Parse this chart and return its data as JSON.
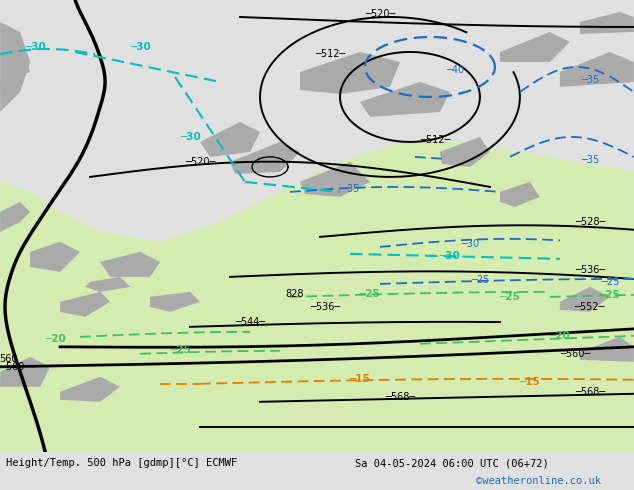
{
  "title_left": "Height/Temp. 500 hPa [gdmp][°C] ECMWF",
  "title_right": "Sa 04-05-2024 06:00 UTC (06+72)",
  "credit": "©weatheronline.co.uk",
  "bg_gray": "#c8c8c8",
  "green_light": "#d4ecb0",
  "green_mid": "#c8e8a0",
  "land_gray": "#b4b4b4",
  "c_black": "#000000",
  "c_blue": "#1a6ec8",
  "c_cyan": "#00c0c0",
  "c_green": "#20c040",
  "c_orange": "#e08000",
  "c_bottom_bg": "#e0e0e0",
  "figsize": [
    6.34,
    4.9
  ],
  "dpi": 100
}
